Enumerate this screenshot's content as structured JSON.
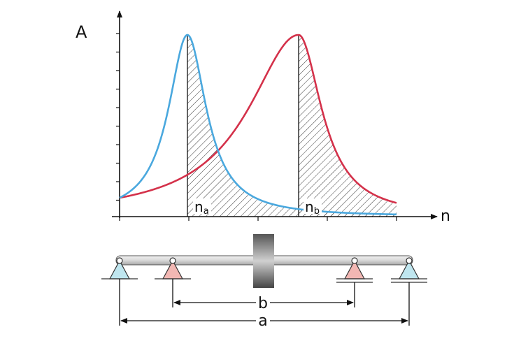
{
  "axes": {
    "y_label": "A",
    "x_label": "n"
  },
  "markers": [
    {
      "base": "n",
      "sub": "a"
    },
    {
      "base": "n",
      "sub": "b"
    }
  ],
  "dimensions": [
    {
      "label": "b"
    },
    {
      "label": "a"
    }
  ]
}
